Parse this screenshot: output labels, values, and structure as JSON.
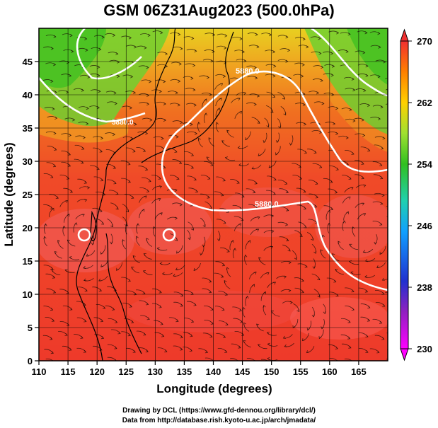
{
  "title": "GSM 06Z31Aug2023 (500.0hPa)",
  "x_axis": {
    "label": "Longitude (degrees)",
    "ticks": [
      "110",
      "115",
      "120",
      "125",
      "130",
      "135",
      "140",
      "145",
      "150",
      "155",
      "160",
      "165"
    ],
    "range": [
      110,
      170
    ]
  },
  "y_axis": {
    "label": "Latitude  (degrees)",
    "ticks": [
      "0",
      "5",
      "10",
      "15",
      "20",
      "25",
      "30",
      "35",
      "40",
      "45"
    ],
    "range": [
      0,
      50
    ]
  },
  "colorbar": {
    "ticks": [
      "230",
      "238",
      "246",
      "254",
      "262",
      "270"
    ],
    "range": [
      230,
      270
    ],
    "colors": [
      "#ff00ff",
      "#3030d0",
      "#00a0ff",
      "#40d0a0",
      "#30c020",
      "#a0e030",
      "#ffd000",
      "#ff8000",
      "#f03030"
    ]
  },
  "contours": [
    {
      "label": "5880.0"
    },
    {
      "label": "5880.0"
    },
    {
      "label": "5880.0"
    }
  ],
  "credits": {
    "line1": "Drawing by DCL (https://www.gfd-dennou.org/library/dcl/)",
    "line2": "Data from http://database.rish.kyoto-u.ac.jp/arch/jmadata/"
  }
}
